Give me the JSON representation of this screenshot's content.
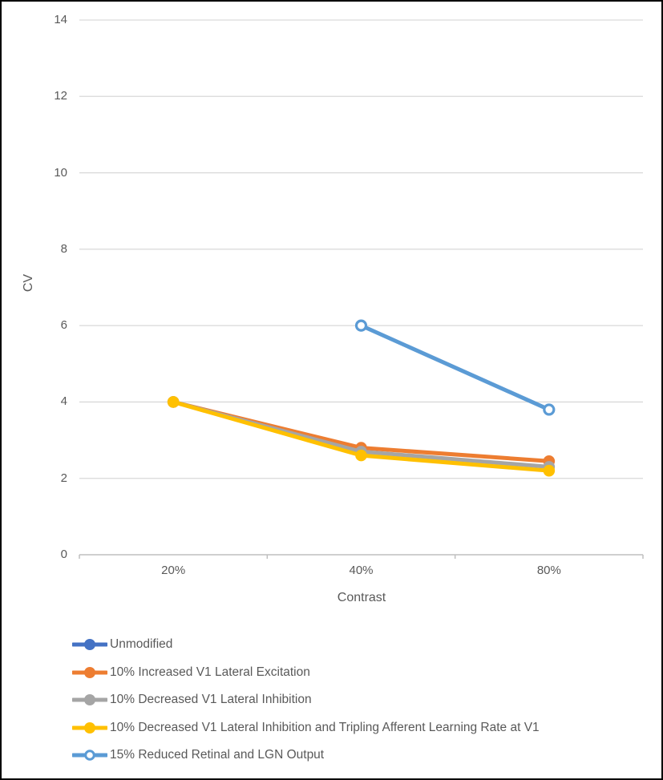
{
  "chart_data": {
    "type": "line",
    "title": "",
    "xlabel": "Contrast",
    "ylabel": "CV",
    "categories": [
      "20%",
      "40%",
      "80%"
    ],
    "ytick_labels": [
      "14",
      "12",
      "10",
      "8",
      "6",
      "4",
      "2",
      "0"
    ],
    "ylim": [
      0,
      14
    ],
    "ytick_step": 2,
    "grid": "horizontal",
    "legend_position": "bottom-left",
    "gridline_color": "#D9D9D9",
    "axis_color": "#BFBFBF",
    "text_color": "#595959",
    "series": [
      {
        "name": "Unmodified",
        "color": "#4472C4",
        "marker": "filled-circle",
        "values": [
          null,
          null,
          null
        ]
      },
      {
        "name": "10% Increased V1 Lateral Excitation",
        "color": "#ED7D31",
        "marker": "filled-circle",
        "values": [
          4.0,
          2.8,
          2.45
        ]
      },
      {
        "name": "10% Decreased V1 Lateral Inhibition",
        "color": "#A5A5A5",
        "marker": "filled-circle",
        "values": [
          4.0,
          2.7,
          2.3
        ]
      },
      {
        "name": "10% Decreased V1 Lateral Inhibition and Tripling Afferent Learning Rate at V1",
        "color": "#FFC000",
        "marker": "filled-circle",
        "values": [
          4.0,
          2.6,
          2.2
        ]
      },
      {
        "name": "15% Reduced Retinal and LGN Output",
        "color": "#5B9BD5",
        "marker": "open-circle",
        "values": [
          null,
          6.0,
          3.8
        ]
      }
    ]
  }
}
